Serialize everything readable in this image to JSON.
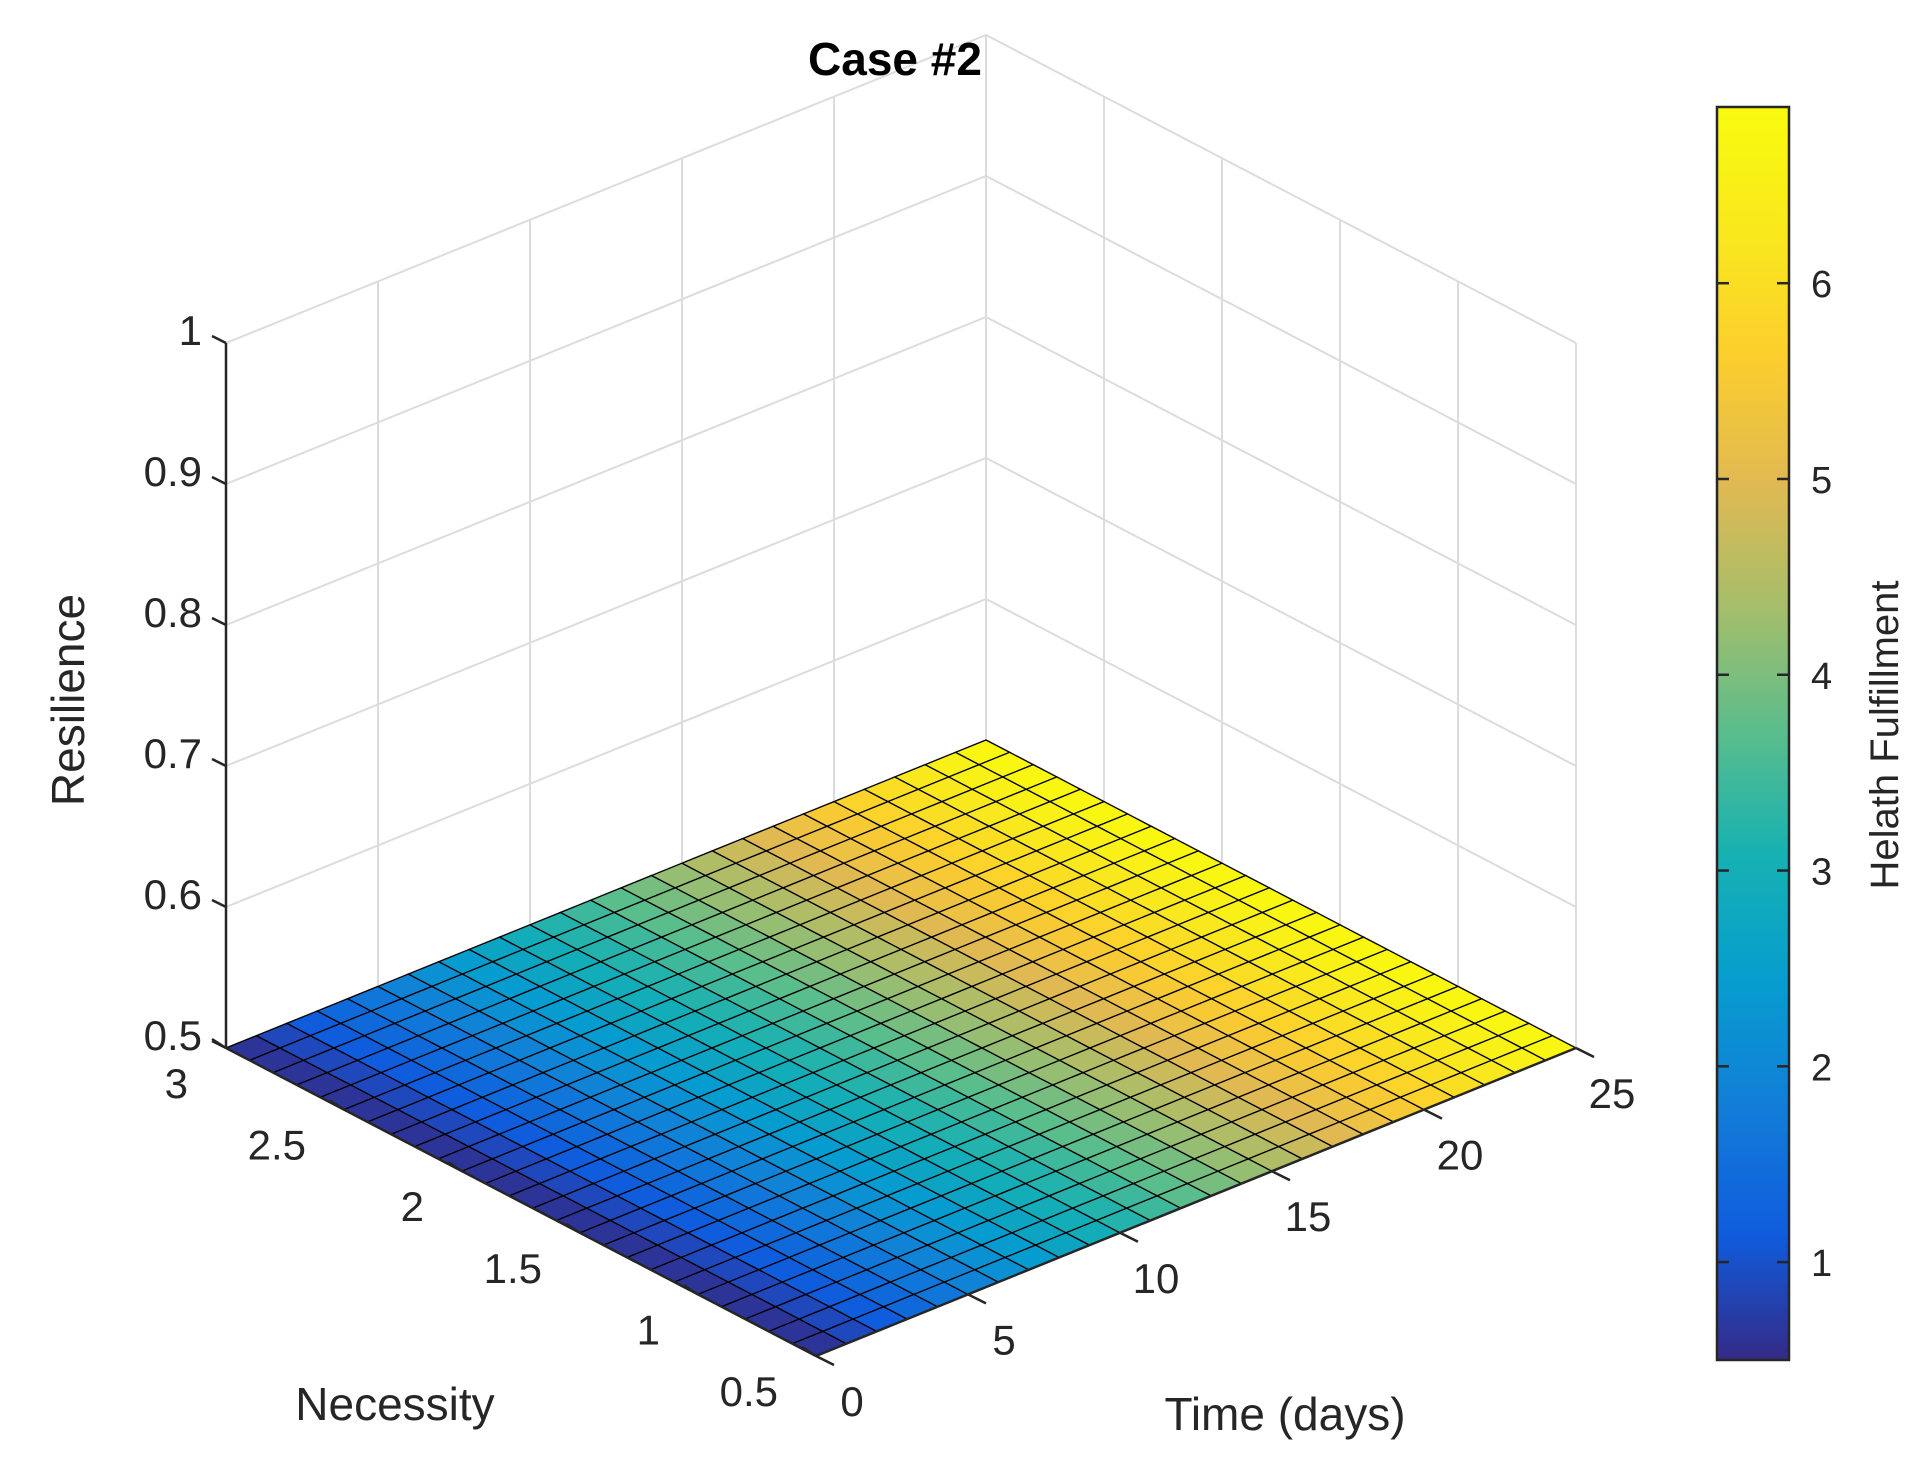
{
  "chart_data": {
    "type": "surface",
    "title": "Case #2",
    "xlabel": "Time (days)",
    "ylabel": "Necessity",
    "zlabel": "Resilience",
    "colorbar_label": "Helath Fulfillment",
    "xlim": [
      0,
      25
    ],
    "ylim": [
      0.5,
      3
    ],
    "zlim": [
      0.5,
      1
    ],
    "x_ticks": [
      "0",
      "5",
      "10",
      "15",
      "20",
      "25"
    ],
    "y_ticks": [
      "0.5",
      "1",
      "1.5",
      "2",
      "2.5",
      "3"
    ],
    "z_ticks": [
      "0.5",
      "0.6",
      "0.7",
      "0.8",
      "0.9",
      "1"
    ],
    "colorbar_ticks": [
      "1",
      "2",
      "3",
      "4",
      "5",
      "6"
    ],
    "colorbar_range": [
      0.5,
      6.9
    ],
    "colormap": "parula",
    "grid": true,
    "surface": {
      "x_range": [
        0,
        25
      ],
      "y_range": [
        0.5,
        3
      ],
      "x_steps": 25,
      "y_steps": 25,
      "z_constant": 0.5,
      "color_value_start": 0.5,
      "color_value_end": 6.9,
      "color_varies_with": "x",
      "edge_color": "#000000",
      "note_values": "color = 0.5 + 6.4 * x/25"
    }
  }
}
